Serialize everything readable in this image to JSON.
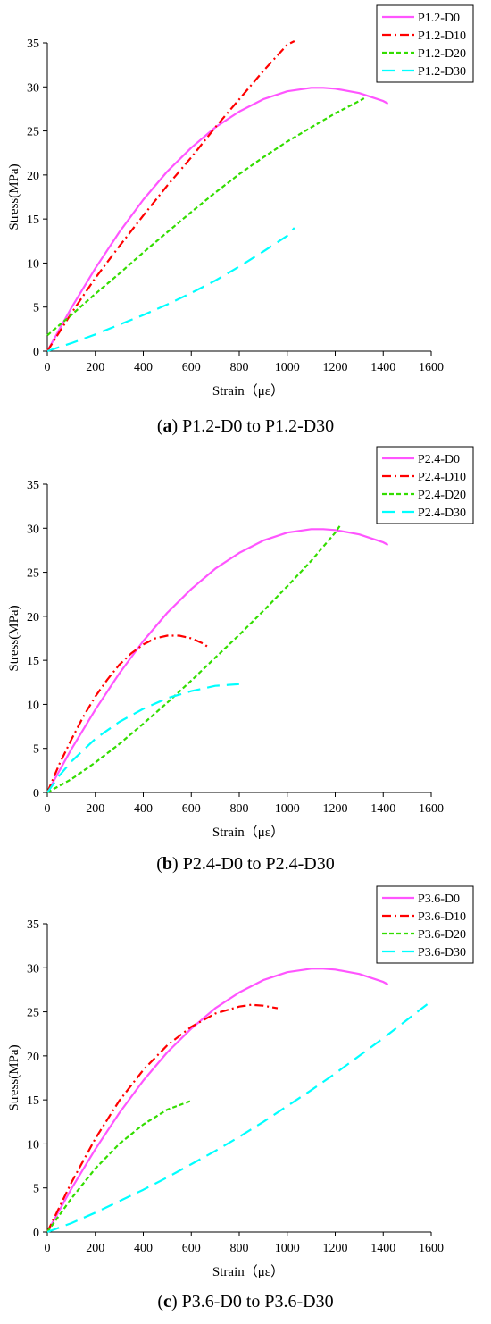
{
  "chart_data": [
    {
      "type": "line",
      "caption_label": "a",
      "caption_text": "P1.2-D0 to P1.2-D30",
      "xlabel": "Strain（με）",
      "ylabel": "Stress(MPa)",
      "xlim": [
        0,
        1600
      ],
      "ylim": [
        0,
        35
      ],
      "xticks": [
        0,
        200,
        400,
        600,
        800,
        1000,
        1200,
        1400,
        1600
      ],
      "yticks": [
        0,
        5,
        10,
        15,
        20,
        25,
        30,
        35
      ],
      "legend_position": "top-right",
      "grid": false,
      "series": [
        {
          "name": "P1.2-D0",
          "color": "#ff55ff",
          "dash": "solid",
          "x": [
            0,
            100,
            200,
            300,
            400,
            500,
            600,
            700,
            800,
            900,
            1000,
            1100,
            1150,
            1200,
            1300,
            1400,
            1420
          ],
          "y": [
            0,
            4.9,
            9.4,
            13.5,
            17.2,
            20.4,
            23.1,
            25.4,
            27.2,
            28.6,
            29.5,
            29.9,
            29.9,
            29.8,
            29.3,
            28.4,
            28.1
          ]
        },
        {
          "name": "P1.2-D10",
          "color": "#ff0000",
          "dash": "dashdot",
          "x": [
            0,
            100,
            200,
            300,
            400,
            500,
            600,
            700,
            800,
            900,
            1000,
            1030
          ],
          "y": [
            0,
            4.3,
            8.3,
            11.9,
            15.4,
            18.8,
            22.0,
            25.4,
            28.6,
            31.8,
            34.8,
            35.2
          ]
        },
        {
          "name": "P1.2-D20",
          "color": "#33dd00",
          "dash": "dashed",
          "x": [
            0,
            100,
            200,
            300,
            400,
            500,
            600,
            700,
            800,
            900,
            1000,
            1100,
            1200,
            1300,
            1320
          ],
          "y": [
            1.8,
            4.1,
            6.5,
            8.8,
            11.2,
            13.5,
            15.8,
            18.0,
            20.1,
            22.0,
            23.8,
            25.4,
            27.0,
            28.4,
            28.7
          ]
        },
        {
          "name": "P1.2-D30",
          "color": "#00ffff",
          "dash": "longdash",
          "x": [
            0,
            100,
            200,
            300,
            400,
            500,
            600,
            700,
            800,
            900,
            1000,
            1030
          ],
          "y": [
            0,
            0.9,
            1.9,
            3.0,
            4.1,
            5.3,
            6.6,
            8.0,
            9.6,
            11.3,
            13.1,
            14.0
          ]
        }
      ]
    },
    {
      "type": "line",
      "caption_label": "b",
      "caption_text": "P2.4-D0 to P2.4-D30",
      "xlabel": "Strain（με）",
      "ylabel": "Stress(MPa)",
      "xlim": [
        0,
        1600
      ],
      "ylim": [
        0,
        35
      ],
      "xticks": [
        0,
        200,
        400,
        600,
        800,
        1000,
        1200,
        1400,
        1600
      ],
      "yticks": [
        0,
        5,
        10,
        15,
        20,
        25,
        30,
        35
      ],
      "legend_position": "top-right",
      "grid": false,
      "series": [
        {
          "name": "P2.4-D0",
          "color": "#ff55ff",
          "dash": "solid",
          "x": [
            0,
            100,
            200,
            300,
            400,
            500,
            600,
            700,
            800,
            900,
            1000,
            1100,
            1150,
            1200,
            1300,
            1400,
            1420
          ],
          "y": [
            0,
            4.9,
            9.4,
            13.5,
            17.2,
            20.4,
            23.1,
            25.4,
            27.2,
            28.6,
            29.5,
            29.9,
            29.9,
            29.8,
            29.3,
            28.4,
            28.1
          ]
        },
        {
          "name": "P2.4-D10",
          "color": "#ff0000",
          "dash": "dashdot",
          "x": [
            0,
            50,
            100,
            150,
            200,
            250,
            300,
            350,
            400,
            450,
            500,
            550,
            600,
            650,
            670
          ],
          "y": [
            0,
            3.2,
            6.0,
            8.6,
            10.9,
            12.8,
            14.5,
            15.8,
            16.8,
            17.5,
            17.8,
            17.8,
            17.5,
            16.9,
            16.5
          ]
        },
        {
          "name": "P2.4-D20",
          "color": "#33dd00",
          "dash": "dashed",
          "x": [
            0,
            100,
            200,
            300,
            400,
            500,
            600,
            700,
            800,
            900,
            1000,
            1100,
            1200,
            1220
          ],
          "y": [
            0,
            1.5,
            3.4,
            5.5,
            7.8,
            10.2,
            12.7,
            15.3,
            17.9,
            20.6,
            23.4,
            26.3,
            29.5,
            30.3
          ]
        },
        {
          "name": "P2.4-D30",
          "color": "#00ffff",
          "dash": "longdash",
          "x": [
            0,
            50,
            100,
            200,
            300,
            400,
            500,
            600,
            700,
            800,
            820
          ],
          "y": [
            0,
            1.9,
            3.5,
            6.1,
            8.0,
            9.5,
            10.7,
            11.5,
            12.1,
            12.3,
            12.3
          ]
        }
      ]
    },
    {
      "type": "line",
      "caption_label": "c",
      "caption_text": "P3.6-D0 to P3.6-D30",
      "xlabel": "Strain（με）",
      "ylabel": "Stress(MPa)",
      "xlim": [
        0,
        1600
      ],
      "ylim": [
        0,
        35
      ],
      "xticks": [
        0,
        200,
        400,
        600,
        800,
        1000,
        1200,
        1400,
        1600
      ],
      "yticks": [
        0,
        5,
        10,
        15,
        20,
        25,
        30,
        35
      ],
      "legend_position": "top-right",
      "grid": false,
      "series": [
        {
          "name": "P3.6-D0",
          "color": "#ff55ff",
          "dash": "solid",
          "x": [
            0,
            100,
            200,
            300,
            400,
            500,
            600,
            700,
            800,
            900,
            1000,
            1100,
            1150,
            1200,
            1300,
            1400,
            1420
          ],
          "y": [
            0,
            4.9,
            9.4,
            13.5,
            17.2,
            20.4,
            23.1,
            25.4,
            27.2,
            28.6,
            29.5,
            29.9,
            29.9,
            29.8,
            29.3,
            28.4,
            28.1
          ]
        },
        {
          "name": "P3.6-D10",
          "color": "#ff0000",
          "dash": "dashdot",
          "x": [
            0,
            100,
            200,
            300,
            400,
            500,
            600,
            700,
            800,
            850,
            900,
            960
          ],
          "y": [
            0,
            5.6,
            10.6,
            14.9,
            18.4,
            21.2,
            23.3,
            24.8,
            25.6,
            25.8,
            25.7,
            25.4
          ]
        },
        {
          "name": "P3.6-D20",
          "color": "#33dd00",
          "dash": "dashed",
          "x": [
            0,
            100,
            200,
            300,
            400,
            500,
            600
          ],
          "y": [
            0,
            3.8,
            7.2,
            10.0,
            12.2,
            13.9,
            14.9
          ]
        },
        {
          "name": "P3.6-D30",
          "color": "#00ffff",
          "dash": "longdash",
          "x": [
            0,
            100,
            200,
            300,
            400,
            500,
            600,
            700,
            800,
            900,
            1000,
            1100,
            1200,
            1300,
            1400,
            1500,
            1600
          ],
          "y": [
            0,
            1.0,
            2.2,
            3.5,
            4.8,
            6.2,
            7.7,
            9.2,
            10.8,
            12.5,
            14.3,
            16.1,
            18.0,
            20.0,
            22.0,
            24.1,
            26.2
          ]
        }
      ]
    }
  ]
}
